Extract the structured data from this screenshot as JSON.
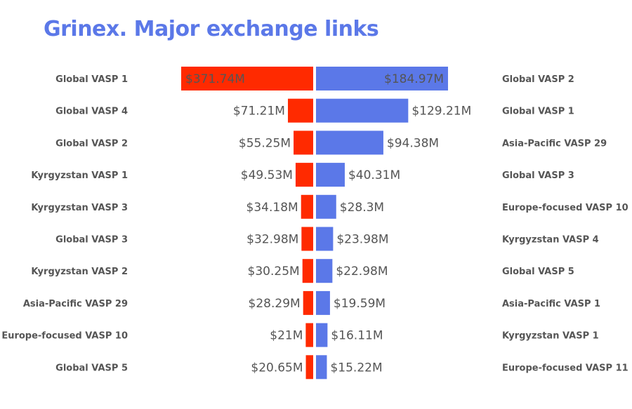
{
  "chart_data": {
    "type": "bar",
    "orientation": "horizontal-butterfly",
    "title": "Grinex. Major exchange links",
    "colors": {
      "left": "#ff2a00",
      "right": "#5b78e8",
      "title": "#5b78e8"
    },
    "left": {
      "categories": [
        "Global VASP 1",
        "Global VASP 4",
        "Global VASP 2",
        "Kyrgyzstan VASP 1",
        "Kyrgyzstan VASP 3",
        "Global VASP 3",
        "Kyrgyzstan VASP 2",
        "Asia-Pacific VASP 29",
        "Europe-focused VASP 10",
        "Global VASP 5"
      ],
      "values": [
        371.74,
        71.21,
        55.25,
        49.53,
        34.18,
        32.98,
        30.25,
        28.29,
        21,
        20.65
      ],
      "labels": [
        "$371.74M",
        "$71.21M",
        "$55.25M",
        "$49.53M",
        "$34.18M",
        "$32.98M",
        "$30.25M",
        "$28.29M",
        "$21M",
        "$20.65M"
      ]
    },
    "right": {
      "categories": [
        "Global VASP 2",
        "Global VASP 1",
        "Asia-Pacific VASP 29",
        "Global VASP 3",
        "Europe-focused VASP 10",
        "Kyrgyzstan VASP 4",
        "Global VASP 5",
        "Asia-Pacific VASP 1",
        "Kyrgyzstan VASP 1",
        "Europe-focused VASP 11"
      ],
      "values": [
        184.97,
        129.21,
        94.38,
        40.31,
        28.3,
        23.98,
        22.98,
        19.59,
        16.11,
        15.22
      ],
      "labels": [
        "$184.97M",
        "$129.21M",
        "$94.38M",
        "$40.31M",
        "$28.3M",
        "$23.98M",
        "$22.98M",
        "$19.59M",
        "$16.11M",
        "$15.22M"
      ]
    },
    "unit": "USD millions",
    "grid": false
  }
}
